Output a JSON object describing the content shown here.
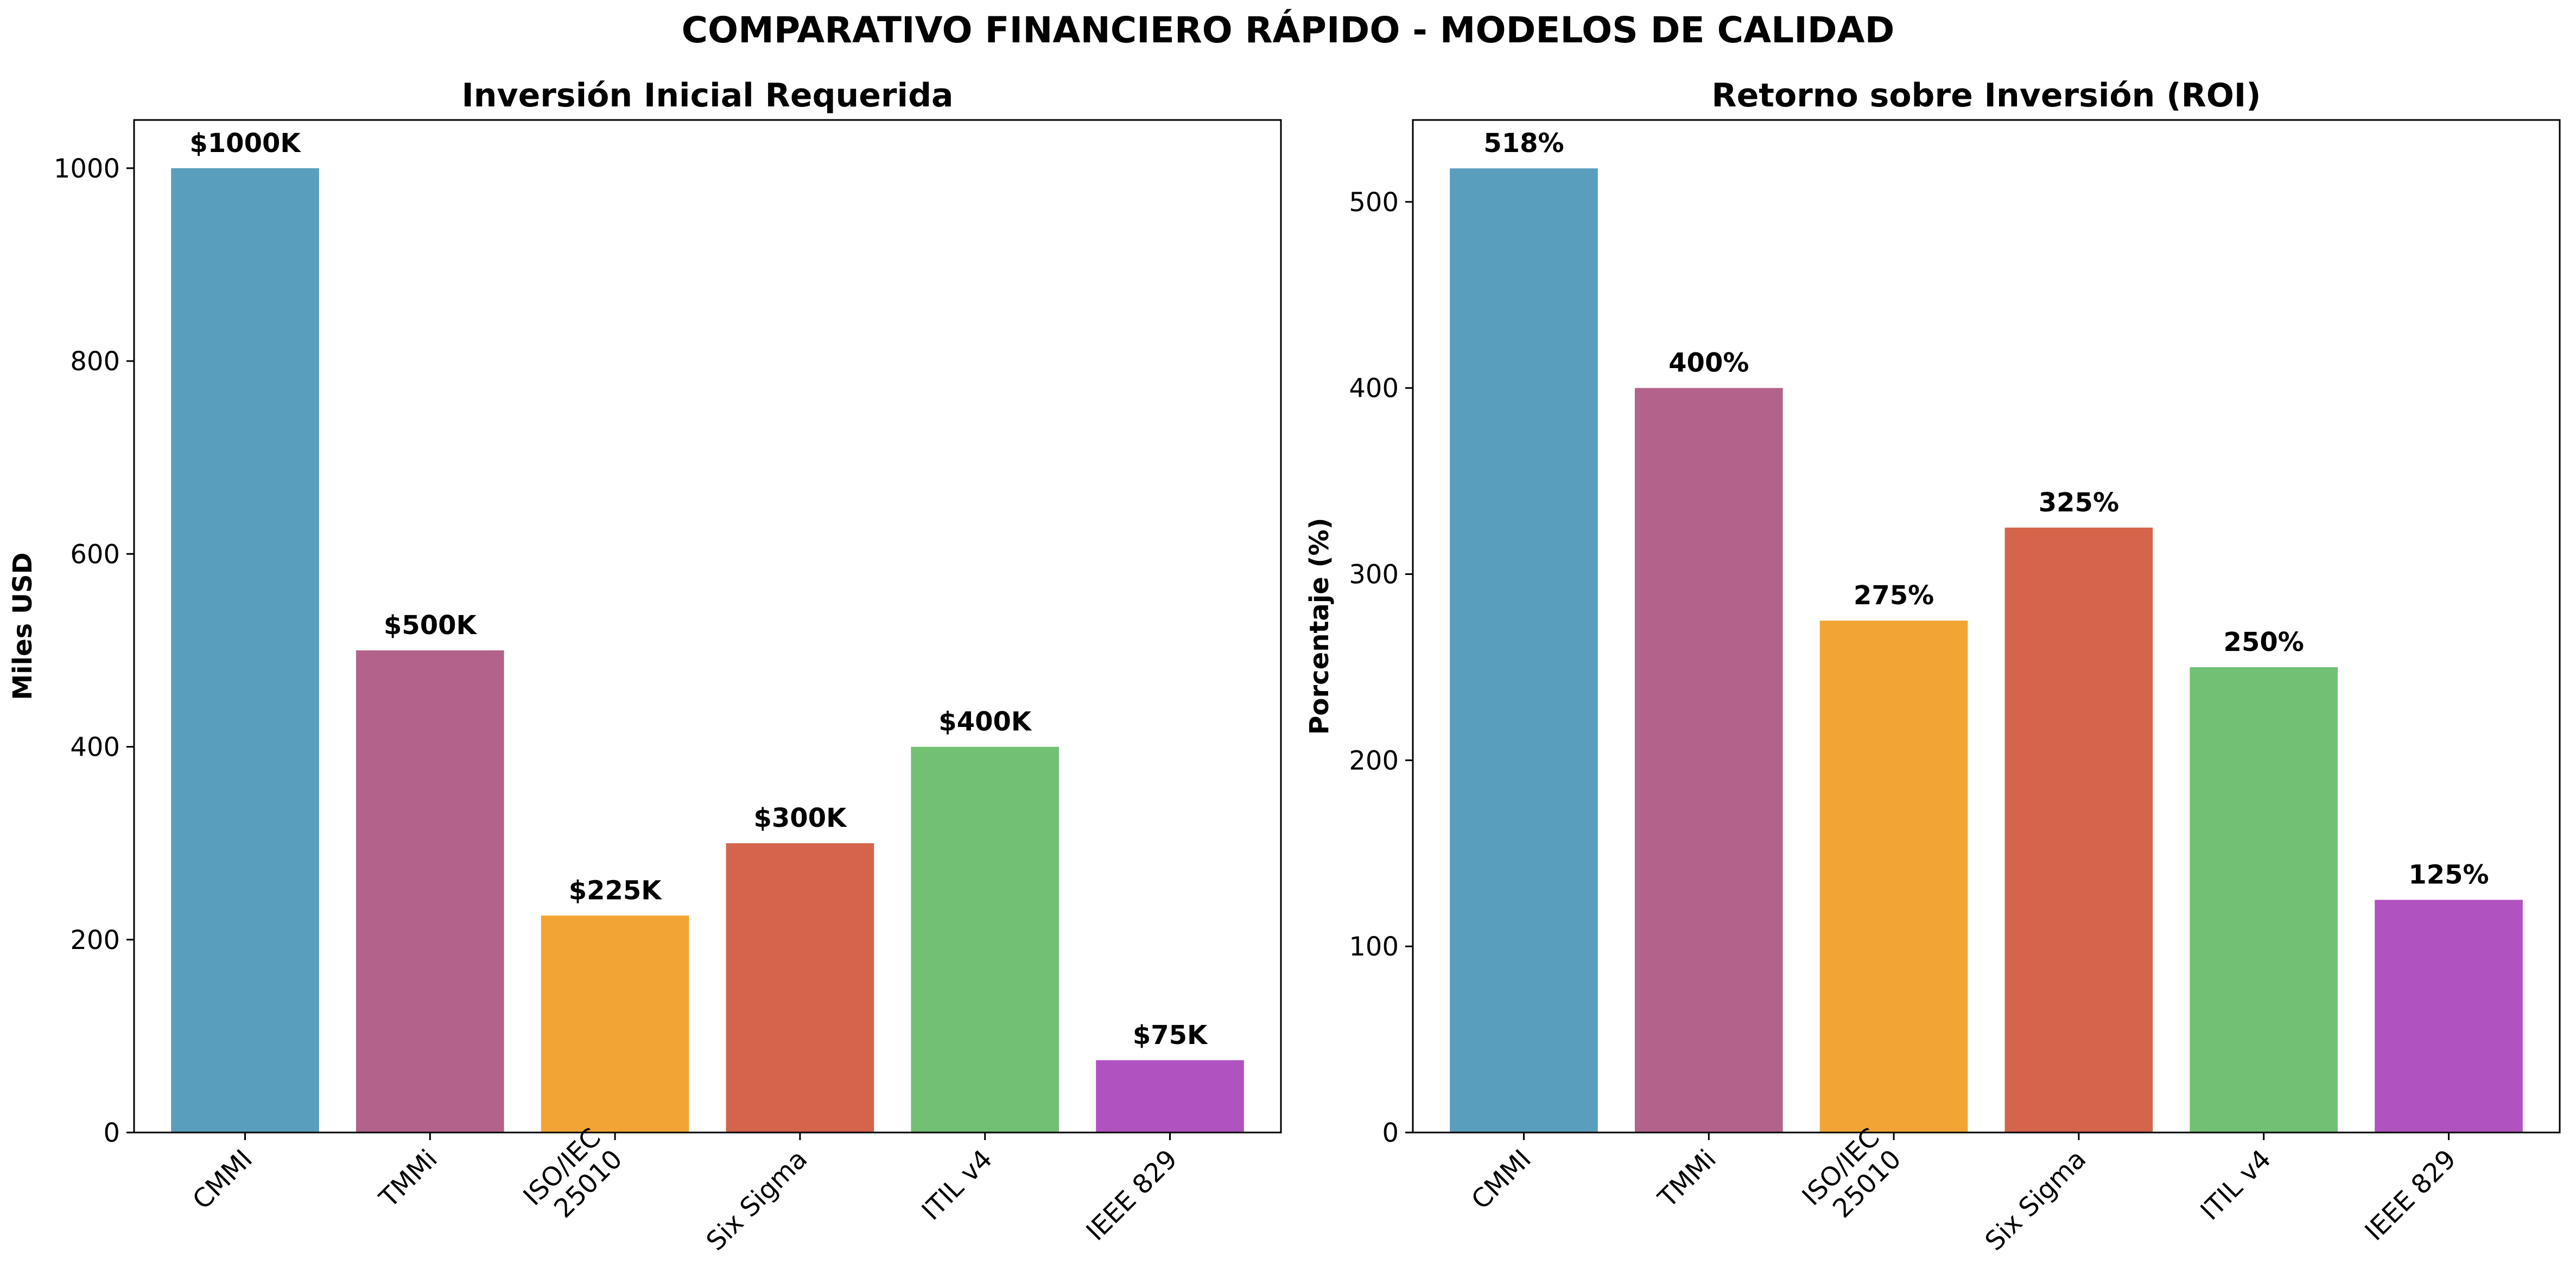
{
  "figure": {
    "suptitle": "COMPARATIVO FINANCIERO RÁPIDO - MODELOS DE CALIDAD"
  },
  "colors": [
    "#5a9ebd",
    "#b3628b",
    "#f2a535",
    "#d4654b",
    "#72c074",
    "#b052c0"
  ],
  "chart_data": [
    {
      "type": "bar",
      "title": "Inversión Inicial Requerida",
      "xlabel": "",
      "ylabel": "Miles USD",
      "categories": [
        "CMMI",
        "TMMi",
        "ISO/IEC\n25010",
        "Six Sigma",
        "ITIL v4",
        "IEEE 829"
      ],
      "values": [
        1000,
        500,
        225,
        300,
        400,
        75
      ],
      "value_labels": [
        "$1000K",
        "$500K",
        "$225K",
        "$300K",
        "$400K",
        "$75K"
      ],
      "ylim": [
        0,
        1050
      ],
      "yticks": [
        0,
        200,
        400,
        600,
        800,
        1000
      ],
      "grid": false,
      "legend": "none"
    },
    {
      "type": "bar",
      "title": "Retorno sobre Inversión (ROI)",
      "xlabel": "",
      "ylabel": "Porcentaje (%)",
      "categories": [
        "CMMI",
        "TMMi",
        "ISO/IEC\n25010",
        "Six Sigma",
        "ITIL v4",
        "IEEE 829"
      ],
      "values": [
        518,
        400,
        275,
        325,
        250,
        125
      ],
      "value_labels": [
        "518%",
        "400%",
        "275%",
        "325%",
        "250%",
        "125%"
      ],
      "ylim": [
        0,
        544
      ],
      "yticks": [
        0,
        100,
        200,
        300,
        400,
        500
      ],
      "grid": false,
      "legend": "none"
    }
  ]
}
